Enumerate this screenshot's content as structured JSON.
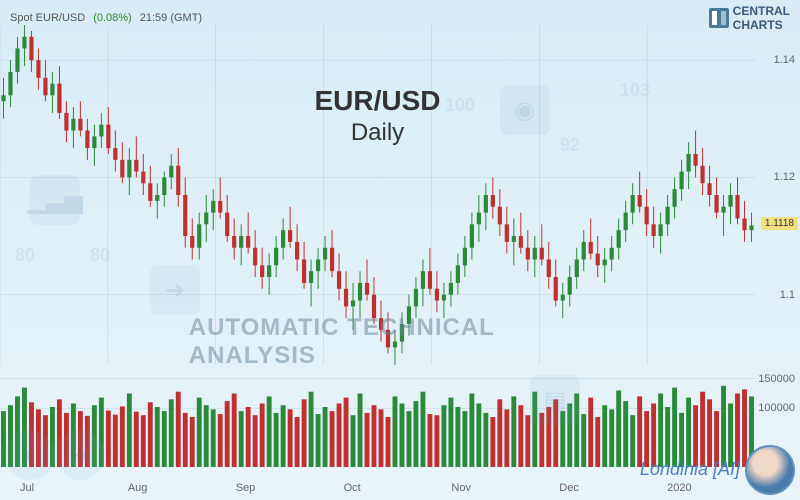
{
  "header": {
    "instrument": "Spot EUR/USD",
    "change_pct": "(0.08%)",
    "time": "21:59 (GMT)",
    "logo_top": "CENTRAL",
    "logo_bottom": "CHARTS"
  },
  "title": {
    "pair": "EUR/USD",
    "timeframe": "Daily"
  },
  "subtitle": "AUTOMATIC TECHNICAL ANALYSIS",
  "brand": "Londinia [AI]",
  "price_chart": {
    "type": "candlestick",
    "ylim": [
      1.088,
      1.146
    ],
    "yticks": [
      1.1,
      1.12,
      1.14
    ],
    "current_price": 1.1118,
    "current_label": "1.1118",
    "xlabels": [
      "Jul",
      "Aug",
      "Sep",
      "Oct",
      "Nov",
      "Dec",
      "2020"
    ],
    "colors": {
      "up_body": "#2a8a3a",
      "up_wick": "#2a8a3a",
      "down_body": "#c03030",
      "down_wick": "#c03030",
      "grid": "#b8d0d8",
      "bg": "transparent"
    },
    "candles_ohlc": [
      [
        1.133,
        1.137,
        1.13,
        1.134
      ],
      [
        1.134,
        1.14,
        1.132,
        1.138
      ],
      [
        1.138,
        1.144,
        1.136,
        1.142
      ],
      [
        1.142,
        1.146,
        1.139,
        1.144
      ],
      [
        1.144,
        1.145,
        1.138,
        1.14
      ],
      [
        1.14,
        1.142,
        1.135,
        1.137
      ],
      [
        1.137,
        1.14,
        1.133,
        1.134
      ],
      [
        1.134,
        1.138,
        1.131,
        1.136
      ],
      [
        1.136,
        1.139,
        1.13,
        1.131
      ],
      [
        1.131,
        1.133,
        1.126,
        1.128
      ],
      [
        1.128,
        1.132,
        1.125,
        1.13
      ],
      [
        1.13,
        1.133,
        1.127,
        1.128
      ],
      [
        1.128,
        1.13,
        1.123,
        1.125
      ],
      [
        1.125,
        1.129,
        1.122,
        1.127
      ],
      [
        1.127,
        1.131,
        1.125,
        1.129
      ],
      [
        1.129,
        1.132,
        1.124,
        1.125
      ],
      [
        1.125,
        1.128,
        1.121,
        1.123
      ],
      [
        1.123,
        1.126,
        1.119,
        1.12
      ],
      [
        1.12,
        1.125,
        1.117,
        1.123
      ],
      [
        1.123,
        1.127,
        1.12,
        1.121
      ],
      [
        1.121,
        1.124,
        1.117,
        1.119
      ],
      [
        1.119,
        1.122,
        1.115,
        1.116
      ],
      [
        1.116,
        1.119,
        1.113,
        1.117
      ],
      [
        1.117,
        1.121,
        1.115,
        1.12
      ],
      [
        1.12,
        1.124,
        1.118,
        1.122
      ],
      [
        1.122,
        1.125,
        1.115,
        1.117
      ],
      [
        1.117,
        1.12,
        1.108,
        1.11
      ],
      [
        1.11,
        1.113,
        1.106,
        1.108
      ],
      [
        1.108,
        1.114,
        1.106,
        1.112
      ],
      [
        1.112,
        1.117,
        1.109,
        1.114
      ],
      [
        1.114,
        1.118,
        1.111,
        1.116
      ],
      [
        1.116,
        1.12,
        1.113,
        1.114
      ],
      [
        1.114,
        1.117,
        1.109,
        1.11
      ],
      [
        1.11,
        1.113,
        1.106,
        1.108
      ],
      [
        1.108,
        1.112,
        1.105,
        1.11
      ],
      [
        1.11,
        1.114,
        1.107,
        1.108
      ],
      [
        1.108,
        1.111,
        1.103,
        1.105
      ],
      [
        1.105,
        1.108,
        1.101,
        1.103
      ],
      [
        1.103,
        1.107,
        1.1,
        1.105
      ],
      [
        1.105,
        1.11,
        1.103,
        1.108
      ],
      [
        1.108,
        1.113,
        1.106,
        1.111
      ],
      [
        1.111,
        1.115,
        1.108,
        1.109
      ],
      [
        1.109,
        1.112,
        1.104,
        1.106
      ],
      [
        1.106,
        1.109,
        1.101,
        1.102
      ],
      [
        1.102,
        1.106,
        1.098,
        1.104
      ],
      [
        1.104,
        1.108,
        1.101,
        1.106
      ],
      [
        1.106,
        1.11,
        1.104,
        1.108
      ],
      [
        1.108,
        1.111,
        1.103,
        1.104
      ],
      [
        1.104,
        1.107,
        1.099,
        1.101
      ],
      [
        1.101,
        1.104,
        1.096,
        1.098
      ],
      [
        1.098,
        1.102,
        1.094,
        1.099
      ],
      [
        1.099,
        1.104,
        1.096,
        1.102
      ],
      [
        1.102,
        1.106,
        1.099,
        1.1
      ],
      [
        1.1,
        1.103,
        1.095,
        1.096
      ],
      [
        1.096,
        1.099,
        1.092,
        1.094
      ],
      [
        1.094,
        1.097,
        1.09,
        1.091
      ],
      [
        1.091,
        1.094,
        1.088,
        1.092
      ],
      [
        1.092,
        1.097,
        1.09,
        1.095
      ],
      [
        1.095,
        1.1,
        1.093,
        1.098
      ],
      [
        1.098,
        1.103,
        1.096,
        1.101
      ],
      [
        1.101,
        1.106,
        1.098,
        1.104
      ],
      [
        1.104,
        1.108,
        1.1,
        1.101
      ],
      [
        1.101,
        1.104,
        1.097,
        1.099
      ],
      [
        1.099,
        1.102,
        1.096,
        1.1
      ],
      [
        1.1,
        1.104,
        1.098,
        1.102
      ],
      [
        1.102,
        1.107,
        1.1,
        1.105
      ],
      [
        1.105,
        1.11,
        1.103,
        1.108
      ],
      [
        1.108,
        1.114,
        1.106,
        1.112
      ],
      [
        1.112,
        1.117,
        1.109,
        1.114
      ],
      [
        1.114,
        1.119,
        1.111,
        1.117
      ],
      [
        1.117,
        1.12,
        1.113,
        1.115
      ],
      [
        1.115,
        1.118,
        1.11,
        1.112
      ],
      [
        1.112,
        1.115,
        1.107,
        1.109
      ],
      [
        1.109,
        1.113,
        1.105,
        1.11
      ],
      [
        1.11,
        1.114,
        1.107,
        1.108
      ],
      [
        1.108,
        1.111,
        1.104,
        1.106
      ],
      [
        1.106,
        1.11,
        1.103,
        1.108
      ],
      [
        1.108,
        1.112,
        1.105,
        1.106
      ],
      [
        1.106,
        1.109,
        1.101,
        1.103
      ],
      [
        1.103,
        1.106,
        1.098,
        1.099
      ],
      [
        1.099,
        1.102,
        1.096,
        1.1
      ],
      [
        1.1,
        1.105,
        1.098,
        1.103
      ],
      [
        1.103,
        1.108,
        1.101,
        1.106
      ],
      [
        1.106,
        1.111,
        1.104,
        1.109
      ],
      [
        1.109,
        1.113,
        1.106,
        1.107
      ],
      [
        1.107,
        1.11,
        1.103,
        1.105
      ],
      [
        1.105,
        1.108,
        1.102,
        1.106
      ],
      [
        1.106,
        1.11,
        1.104,
        1.108
      ],
      [
        1.108,
        1.113,
        1.106,
        1.111
      ],
      [
        1.111,
        1.116,
        1.109,
        1.114
      ],
      [
        1.114,
        1.119,
        1.112,
        1.117
      ],
      [
        1.117,
        1.121,
        1.114,
        1.115
      ],
      [
        1.115,
        1.118,
        1.11,
        1.112
      ],
      [
        1.112,
        1.115,
        1.108,
        1.11
      ],
      [
        1.11,
        1.114,
        1.107,
        1.112
      ],
      [
        1.112,
        1.117,
        1.11,
        1.115
      ],
      [
        1.115,
        1.12,
        1.113,
        1.118
      ],
      [
        1.118,
        1.123,
        1.116,
        1.121
      ],
      [
        1.121,
        1.126,
        1.118,
        1.124
      ],
      [
        1.124,
        1.128,
        1.12,
        1.122
      ],
      [
        1.122,
        1.125,
        1.117,
        1.119
      ],
      [
        1.119,
        1.122,
        1.115,
        1.117
      ],
      [
        1.117,
        1.12,
        1.113,
        1.114
      ],
      [
        1.114,
        1.117,
        1.11,
        1.115
      ],
      [
        1.115,
        1.119,
        1.112,
        1.117
      ],
      [
        1.117,
        1.12,
        1.112,
        1.113
      ],
      [
        1.113,
        1.116,
        1.109,
        1.111
      ],
      [
        1.111,
        1.114,
        1.109,
        1.1118
      ]
    ]
  },
  "volume_chart": {
    "type": "bar",
    "ylim": [
      0,
      170000
    ],
    "yticks": [
      100000,
      150000
    ],
    "colors": {
      "up": "#2a8a3a",
      "down": "#c03030"
    },
    "values": [
      95000,
      105000,
      120000,
      135000,
      110000,
      98000,
      88000,
      102000,
      115000,
      92000,
      108000,
      95000,
      87000,
      105000,
      118000,
      96000,
      89000,
      103000,
      125000,
      94000,
      88000,
      110000,
      102000,
      95000,
      115000,
      128000,
      92000,
      85000,
      118000,
      105000,
      98000,
      90000,
      112000,
      125000,
      95000,
      102000,
      88000,
      108000,
      120000,
      92000,
      105000,
      98000,
      85000,
      115000,
      128000,
      90000,
      102000,
      95000,
      108000,
      118000,
      88000,
      125000,
      92000,
      105000,
      98000,
      85000,
      120000,
      108000,
      95000,
      112000,
      128000,
      90000,
      88000,
      105000,
      118000,
      102000,
      95000,
      125000,
      108000,
      92000,
      85000,
      115000,
      98000,
      120000,
      105000,
      88000,
      128000,
      92000,
      102000,
      115000,
      95000,
      108000,
      125000,
      90000,
      118000,
      85000,
      105000,
      98000,
      130000,
      112000,
      88000,
      120000,
      95000,
      108000,
      125000,
      102000,
      135000,
      92000,
      118000,
      105000,
      128000,
      115000,
      95000,
      138000,
      108000,
      125000,
      132000,
      120000
    ]
  },
  "wm_labels": {
    "a": "80",
    "b": "80",
    "c": "92",
    "d": "100",
    "e": "103"
  }
}
